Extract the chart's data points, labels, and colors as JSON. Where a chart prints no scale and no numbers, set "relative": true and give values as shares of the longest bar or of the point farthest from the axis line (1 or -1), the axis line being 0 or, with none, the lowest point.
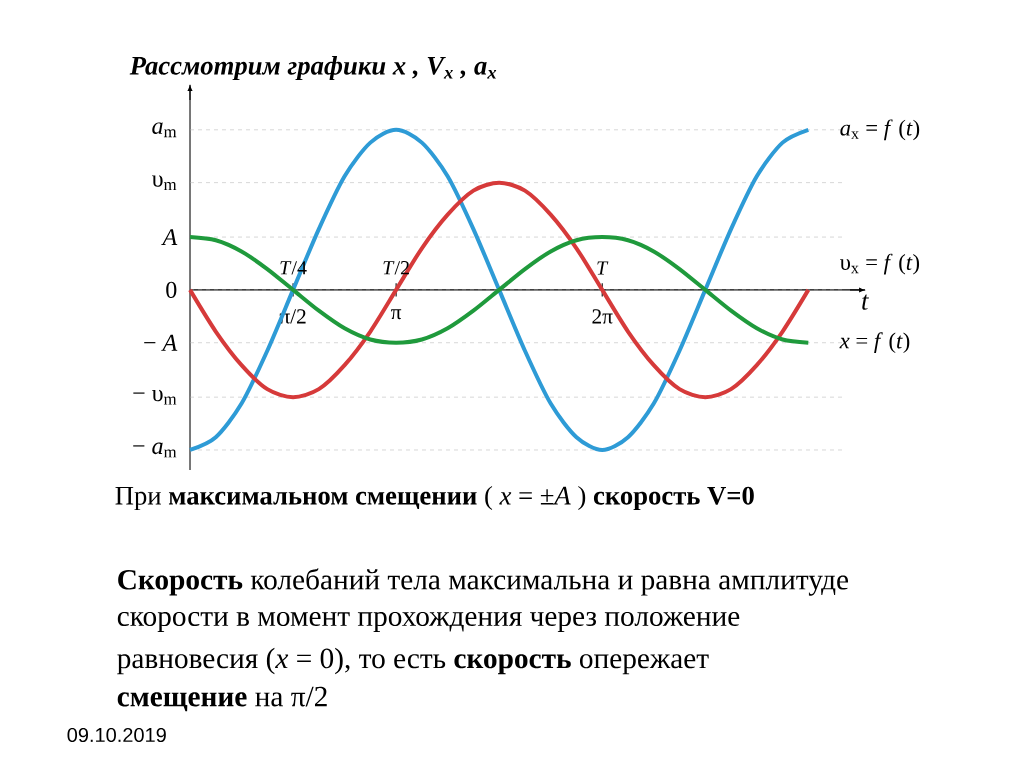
{
  "chart_data": {
    "type": "line",
    "title": "Рассмотрим графики *x* , *V*$_{x}$ , *a*$_{x}$",
    "xlabel": "*t*",
    "relative": true,
    "categories": [
      null,
      null,
      null,
      null,
      "π/2",
      null,
      null,
      null,
      "π",
      null,
      null,
      null,
      null,
      null,
      null,
      null,
      "2π",
      null,
      null,
      null,
      null,
      null,
      null,
      null,
      null
    ],
    "series": [
      {
        "name": "*a*$_{x}$ = *f* (*t*)",
        "color": "#2e9bd6",
        "values": [
          -1,
          -0.92,
          -0.71,
          -0.38,
          0,
          0.38,
          0.71,
          0.92,
          1,
          0.92,
          0.71,
          0.38,
          0,
          -0.38,
          -0.71,
          -0.92,
          -1,
          -0.92,
          -0.71,
          -0.38,
          0,
          0.38,
          0.71,
          0.92,
          1
        ]
      },
      {
        "name": "υ$_{x}$ = *f* (*t*)",
        "color": "#d63a3a",
        "values": [
          0,
          -0.26,
          -0.47,
          -0.62,
          -0.67,
          -0.62,
          -0.47,
          -0.26,
          0,
          0.26,
          0.47,
          0.62,
          0.67,
          0.62,
          0.47,
          0.26,
          0,
          -0.26,
          -0.47,
          -0.62,
          -0.67,
          -0.62,
          -0.47,
          -0.26,
          0
        ]
      },
      {
        "name": "*x* = *f* (*t*)",
        "color": "#1f9a3c",
        "values": [
          0.33,
          0.31,
          0.24,
          0.13,
          0,
          -0.13,
          -0.24,
          -0.31,
          -0.33,
          -0.31,
          -0.24,
          -0.13,
          0,
          0.13,
          0.24,
          0.31,
          0.33,
          0.31,
          0.24,
          0.13,
          0,
          -0.13,
          -0.24,
          -0.31,
          -0.33
        ]
      }
    ],
    "ref_lines": [
      {
        "axis": "y",
        "value": 1,
        "label": "*a*$_{m}$",
        "color": "#b4b4b4",
        "line_style": "dashed"
      },
      {
        "axis": "y",
        "value": 0.67,
        "label": "υ$_{m}$",
        "color": "#b4b4b4",
        "line_style": "dashed"
      },
      {
        "axis": "y",
        "value": 0.33,
        "label": "*A*",
        "color": "#b4b4b4",
        "line_style": "dashed"
      },
      {
        "axis": "y",
        "value": 0,
        "label": "0",
        "color": "#b4b4b4",
        "line_style": "dashed"
      },
      {
        "axis": "y",
        "value": -0.33,
        "label": "− *A*",
        "color": "#b4b4b4",
        "line_style": "dashed"
      },
      {
        "axis": "y",
        "value": -0.67,
        "label": "− υ$_{m}$",
        "color": "#b4b4b4",
        "line_style": "dashed"
      },
      {
        "axis": "y",
        "value": -1,
        "label": "− *a*$_{m}$",
        "color": "#b4b4b4",
        "line_style": "dashed"
      }
    ],
    "annotations": [
      {
        "text": "*T*/4",
        "x": "π/2",
        "y": 0
      },
      {
        "text": "*T*/2",
        "x": "π",
        "y": 0
      },
      {
        "text": "*T*",
        "x": "2π",
        "y": 0
      },
      "При **максимальном смещении** ( *x* = ±*A* ) **скорость V=0**",
      "**Скорость** колебаний тела максимальна и равна амплитуде",
      "скорости в момент прохождения через положение",
      "равновесия (*x* = 0), то есть **скорость** опережает",
      "**смещение** на π/2",
      "09.10.2019"
    ]
  }
}
